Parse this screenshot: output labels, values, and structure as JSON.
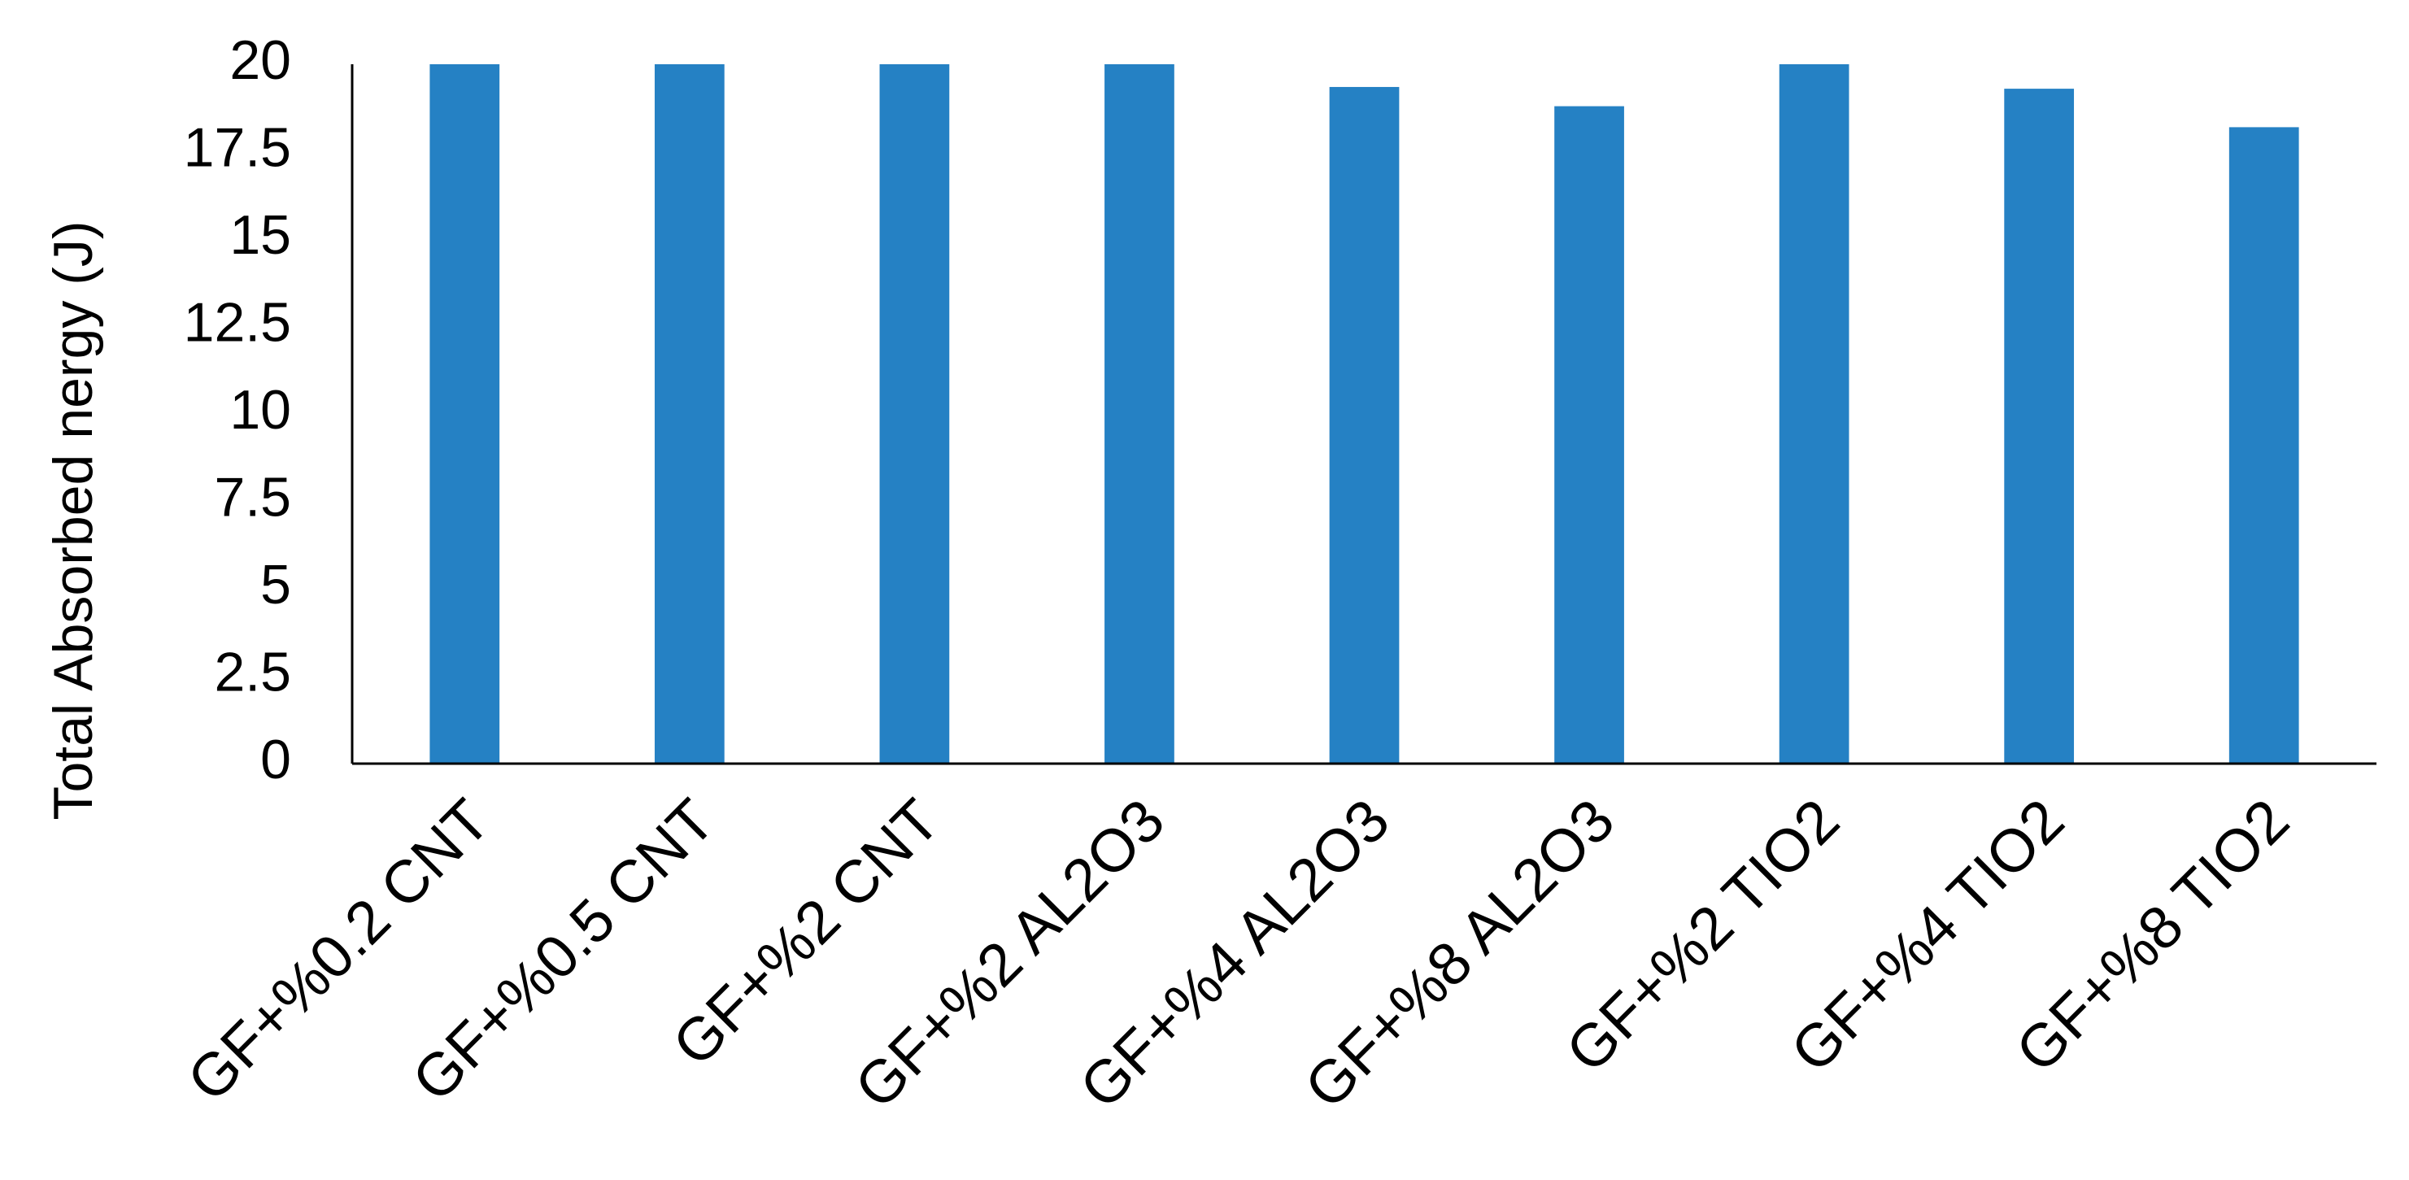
{
  "chart_data": {
    "type": "bar",
    "y_label": "Total Absorbed nergy (J)",
    "categories": [
      "GF+%0.2 CNT",
      "GF+%0.5 CNT",
      "GF+%2 CNT",
      "GF+%2 AL2O3",
      "GF+%4 AL2O3",
      "GF+%8 AL2O3",
      "GF+%2 TIO2",
      "GF+%4 TIO2",
      "GF+%8 TIO2"
    ],
    "values": [
      20,
      20,
      20,
      20,
      19.35,
      18.8,
      20,
      19.3,
      18.2
    ],
    "color": "#2581c4",
    "ylim": [
      0,
      20
    ],
    "yticks": [
      0,
      2.5,
      5,
      7.5,
      10,
      12.5,
      15,
      17.5,
      20
    ],
    "grid": false
  }
}
